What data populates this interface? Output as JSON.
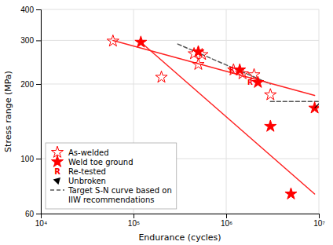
{
  "chart_data": {
    "type": "scatter",
    "xlabel": "Endurance (cycles)",
    "ylabel": "Stress range (MPa)",
    "log": true,
    "grid": true,
    "legend": "lower left",
    "xlim": [
      10000,
      10000000
    ],
    "ylim": [
      60,
      400
    ],
    "xticks": [
      {
        "value": 10000,
        "label": "10⁴"
      },
      {
        "value": 100000,
        "label": "10⁵"
      },
      {
        "value": 1000000,
        "label": "10⁶"
      },
      {
        "value": 10000000,
        "label": "10⁷"
      }
    ],
    "yticks": [
      60,
      100,
      200,
      300,
      400
    ],
    "series": [
      {
        "name": "As-welded",
        "type": "scatter",
        "marker": "star-open",
        "color": "#ff0000",
        "x": [
          60000,
          200000,
          450000,
          500000,
          550000,
          1200000,
          1500000,
          2000000,
          3000000
        ],
        "values": [
          298,
          213,
          265,
          240,
          263,
          228,
          220,
          218,
          181
        ]
      },
      {
        "name": "Weld toe ground",
        "type": "scatter",
        "marker": "star",
        "color": "#ff0000",
        "x": [
          120000,
          500000,
          3000000,
          5000000
        ],
        "values": [
          295,
          270,
          135,
          72
        ]
      },
      {
        "name": "Re-tested",
        "type": "scatter",
        "marker": "star",
        "color": "#ff0000",
        "x": [
          1400000,
          2200000
        ],
        "values": [
          228,
          203
        ]
      },
      {
        "name": "Unbroken",
        "type": "scatter",
        "marker": "star-arrow",
        "color": "#ff0000",
        "x": [
          9000000
        ],
        "values": [
          160
        ]
      },
      {
        "name": "Target S-N curve based on\nIIW recommendations",
        "type": "line",
        "line_style": "dashed",
        "color": "#555555",
        "x": [
          300000,
          3000000
        ],
        "values": [
          290,
          200
        ]
      },
      {
        "type": "line",
        "line_style": "dashed",
        "color": "#555555",
        "x": [
          3000000,
          10000000
        ],
        "values": [
          170,
          170
        ]
      },
      {
        "type": "line",
        "line_style": "solid",
        "color": "#ff2222",
        "x": [
          60000,
          9000000
        ],
        "values": [
          300,
          180
        ]
      },
      {
        "type": "line",
        "line_style": "solid",
        "color": "#ff2222",
        "x": [
          120000,
          9000000
        ],
        "values": [
          295,
          72
        ]
      }
    ],
    "annotations": [
      {
        "text": "R",
        "x": 1400000,
        "y": 228
      },
      {
        "text": "R",
        "x": 2200000,
        "y": 203
      }
    ]
  }
}
